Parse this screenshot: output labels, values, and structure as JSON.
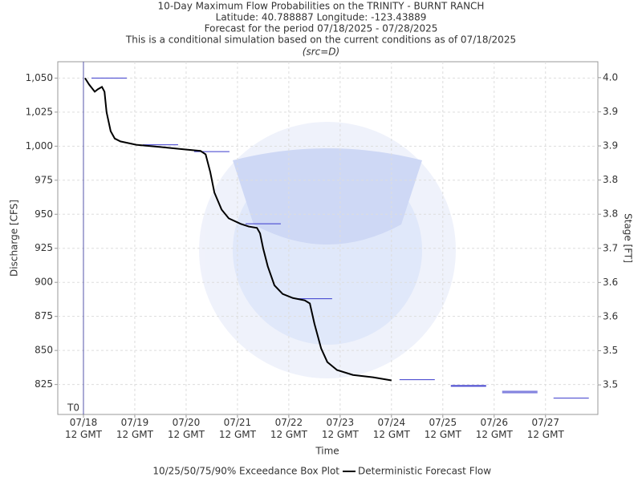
{
  "chart_data": {
    "type": "line",
    "title": "10-Day Maximum Flow Probabilities on the TRINITY - BURNT RANCH",
    "subtitle": [
      "Latitude: 40.788887 Longitude: -123.43889",
      "Forecast for the period 07/18/2025 - 07/28/2025",
      "This is a conditional simulation based on the current conditions as of 07/18/2025"
    ],
    "source_note": "(src=D)",
    "x_label": "Time",
    "y_label": "Discharge [CFS]",
    "y2_label": "Stage [FT]",
    "t0_label": "T0",
    "t0": 0,
    "xlim": [
      -0.5,
      10.02
    ],
    "xticks": [
      {
        "value": 0,
        "label": "07/18 12 GMT"
      },
      {
        "value": 1,
        "label": "07/19 12 GMT"
      },
      {
        "value": 2,
        "label": "07/20 12 GMT"
      },
      {
        "value": 3,
        "label": "07/21 12 GMT"
      },
      {
        "value": 4,
        "label": "07/22 12 GMT"
      },
      {
        "value": 5,
        "label": "07/23 12 GMT"
      },
      {
        "value": 6,
        "label": "07/24 12 GMT"
      },
      {
        "value": 7,
        "label": "07/25 12 GMT"
      },
      {
        "value": 8,
        "label": "07/26 12 GMT"
      },
      {
        "value": 9,
        "label": "07/27 12 GMT"
      }
    ],
    "ylim": [
      803,
      1062
    ],
    "yticks": [
      825,
      850,
      875,
      900,
      925,
      950,
      975,
      {
        "value": 1000,
        "label": "1,000"
      },
      {
        "value": 1025,
        "label": "1,025"
      },
      {
        "value": 1050,
        "label": "1,050"
      }
    ],
    "y2lim": [
      3.408,
      4.028
    ],
    "y2ticks": [
      {
        "value": 3.46,
        "label": "3.5"
      },
      {
        "value": 3.52,
        "label": "3.5"
      },
      {
        "value": 3.58,
        "label": "3.6"
      },
      {
        "value": 3.64,
        "label": "3.6"
      },
      {
        "value": 3.7,
        "label": "3.7"
      },
      {
        "value": 3.76,
        "label": "3.8"
      },
      {
        "value": 3.82,
        "label": "3.8"
      },
      {
        "value": 3.88,
        "label": "3.9"
      },
      {
        "value": 3.94,
        "label": "3.9"
      },
      {
        "value": 4.0,
        "label": "4.0"
      }
    ],
    "grid": true,
    "series": [
      {
        "name": "10/25/50/75/90% Exceedance Box Plot",
        "type": "box",
        "color": "#3a3acc",
        "x": [
          0.5,
          1.5,
          2.5,
          3.5,
          4.5,
          6.5,
          7.5,
          8.5,
          9.5
        ],
        "values": [
          [
            1050
          ],
          [
            1001
          ],
          [
            996
          ],
          [
            943
          ],
          [
            888
          ],
          [
            828.5
          ],
          [
            824.3,
            823.7
          ],
          [
            820,
            819
          ],
          [
            815
          ]
        ]
      },
      {
        "name": "Deterministic Forecast Flow",
        "color": "#000000",
        "x": [
          0.03,
          0.11,
          0.22,
          0.28,
          0.36,
          0.41,
          0.45,
          0.53,
          0.61,
          0.72,
          1.03,
          1.5,
          1.97,
          2.28,
          2.38,
          2.47,
          2.55,
          2.69,
          2.83,
          3.06,
          3.22,
          3.38,
          3.44,
          3.5,
          3.59,
          3.72,
          3.88,
          4.08,
          4.31,
          4.41,
          4.5,
          4.63,
          4.75,
          4.94,
          5.25,
          5.64,
          6.0
        ],
        "values": [
          1050,
          1045.3,
          1040,
          1041.8,
          1043.5,
          1040,
          1025,
          1011,
          1005.6,
          1003.5,
          1001,
          999.4,
          997.6,
          996.5,
          994,
          981,
          966,
          953.5,
          947,
          943,
          941,
          940,
          936,
          925,
          911.8,
          897.8,
          891.5,
          888.5,
          886.8,
          884.5,
          869.5,
          851.5,
          841.5,
          835.6,
          832,
          830.3,
          828
        ]
      }
    ]
  }
}
